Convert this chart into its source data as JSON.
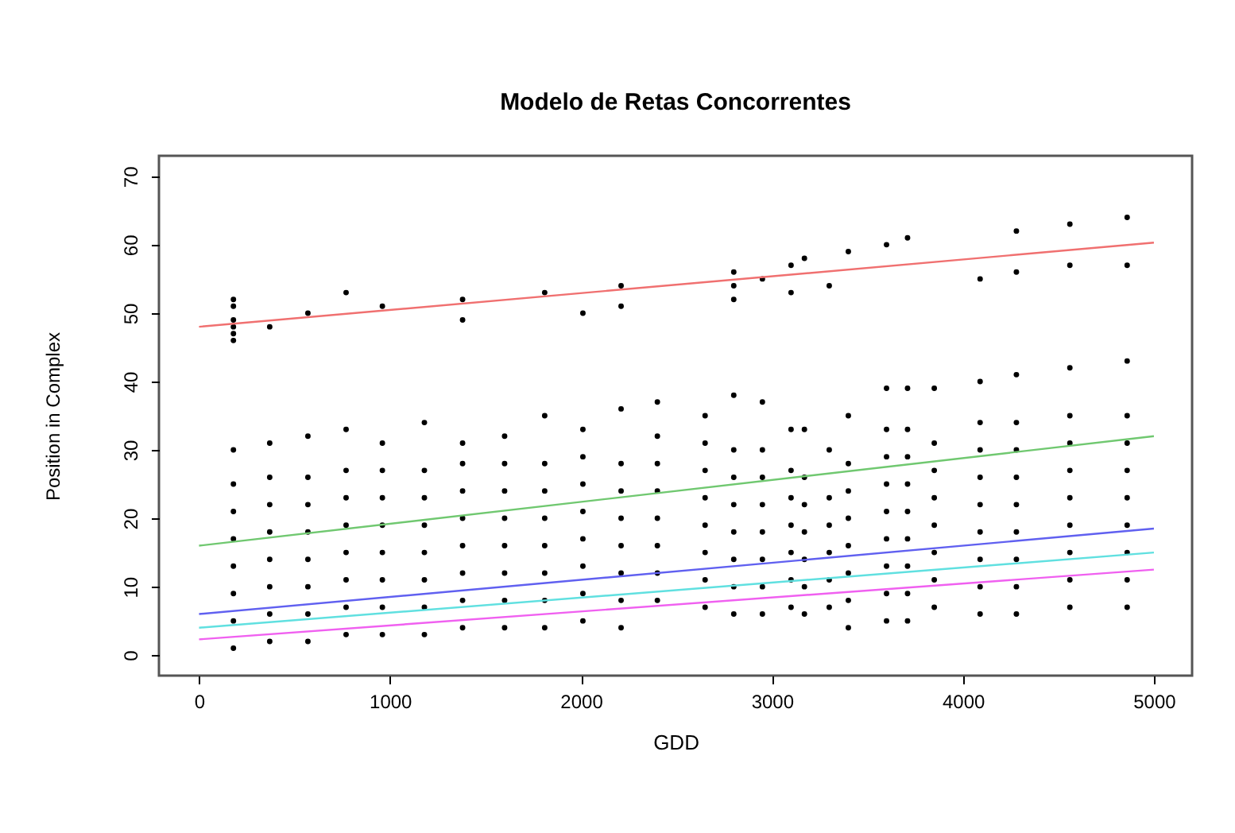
{
  "chart_data": {
    "type": "scatter",
    "title": "Modelo de Retas Concorrentes",
    "xlabel": "GDD",
    "ylabel": "Position in Complex",
    "xlim": [
      -210,
      5200
    ],
    "ylim": [
      -3,
      73
    ],
    "xticks": [
      0,
      1000,
      2000,
      3000,
      4000,
      5000
    ],
    "yticks": [
      0,
      10,
      20,
      30,
      40,
      50,
      60,
      70
    ],
    "grid": false,
    "series": [
      {
        "color": "#000000",
        "marker": "circle",
        "x": [
          180,
          180,
          180,
          180,
          180,
          180,
          180,
          180,
          180,
          180,
          180,
          180,
          180,
          180,
          370,
          370,
          370,
          370,
          370,
          370,
          370,
          370,
          370,
          570,
          570,
          570,
          570,
          570,
          570,
          570,
          570,
          570,
          770,
          770,
          770,
          770,
          770,
          770,
          770,
          770,
          770,
          960,
          960,
          960,
          960,
          960,
          960,
          960,
          960,
          960,
          1180,
          1180,
          1180,
          1180,
          1180,
          1180,
          1180,
          1180,
          1380,
          1380,
          1380,
          1380,
          1380,
          1380,
          1380,
          1380,
          1380,
          1380,
          1600,
          1600,
          1600,
          1600,
          1600,
          1600,
          1600,
          1600,
          1810,
          1810,
          1810,
          1810,
          1810,
          1810,
          1810,
          1810,
          1810,
          2010,
          2010,
          2010,
          2010,
          2010,
          2010,
          2010,
          2010,
          2010,
          2210,
          2210,
          2210,
          2210,
          2210,
          2210,
          2210,
          2210,
          2210,
          2210,
          2400,
          2400,
          2400,
          2400,
          2400,
          2400,
          2400,
          2400,
          2650,
          2650,
          2650,
          2650,
          2650,
          2650,
          2650,
          2650,
          2800,
          2800,
          2800,
          2800,
          2800,
          2800,
          2800,
          2800,
          2800,
          2800,
          2800,
          2950,
          2950,
          2950,
          2950,
          2950,
          2950,
          2950,
          2950,
          2950,
          3100,
          3100,
          3100,
          3100,
          3100,
          3100,
          3100,
          3100,
          3100,
          3170,
          3170,
          3170,
          3170,
          3170,
          3170,
          3170,
          3170,
          3300,
          3300,
          3300,
          3300,
          3300,
          3300,
          3300,
          3400,
          3400,
          3400,
          3400,
          3400,
          3400,
          3400,
          3400,
          3400,
          3600,
          3600,
          3600,
          3600,
          3600,
          3600,
          3600,
          3600,
          3600,
          3600,
          3710,
          3710,
          3710,
          3710,
          3710,
          3710,
          3710,
          3710,
          3710,
          3710,
          3850,
          3850,
          3850,
          3850,
          3850,
          3850,
          3850,
          3850,
          4090,
          4090,
          4090,
          4090,
          4090,
          4090,
          4090,
          4090,
          4090,
          4090,
          4280,
          4280,
          4280,
          4280,
          4280,
          4280,
          4280,
          4280,
          4280,
          4280,
          4280,
          4560,
          4560,
          4560,
          4560,
          4560,
          4560,
          4560,
          4560,
          4560,
          4560,
          4560,
          4860,
          4860,
          4860,
          4860,
          4860,
          4860,
          4860,
          4860,
          4860,
          4860,
          4860
        ],
        "values": [
          1,
          5,
          9,
          13,
          17,
          21,
          25,
          30,
          46,
          47,
          48,
          49,
          51,
          52,
          2,
          6,
          10,
          14,
          18,
          22,
          26,
          31,
          48,
          2,
          6,
          10,
          14,
          18,
          22,
          26,
          32,
          50,
          3,
          7,
          11,
          15,
          19,
          23,
          27,
          33,
          53,
          3,
          7,
          11,
          15,
          19,
          23,
          27,
          31,
          51,
          3,
          7,
          11,
          15,
          19,
          23,
          27,
          34,
          4,
          8,
          12,
          16,
          20,
          24,
          28,
          31,
          49,
          52,
          4,
          8,
          12,
          16,
          20,
          24,
          28,
          32,
          4,
          8,
          12,
          16,
          20,
          24,
          28,
          35,
          53,
          5,
          9,
          13,
          17,
          21,
          25,
          29,
          33,
          50,
          4,
          8,
          12,
          16,
          20,
          24,
          28,
          36,
          51,
          54,
          8,
          12,
          16,
          20,
          24,
          28,
          32,
          37,
          7,
          11,
          15,
          19,
          23,
          27,
          31,
          35,
          6,
          10,
          14,
          18,
          22,
          26,
          30,
          38,
          52,
          54,
          56,
          6,
          10,
          14,
          18,
          22,
          26,
          30,
          37,
          55,
          7,
          11,
          15,
          19,
          23,
          27,
          33,
          53,
          57,
          6,
          10,
          14,
          18,
          22,
          26,
          33,
          58,
          7,
          11,
          15,
          19,
          23,
          30,
          54,
          4,
          8,
          12,
          16,
          20,
          24,
          28,
          35,
          59,
          5,
          9,
          13,
          17,
          21,
          25,
          29,
          33,
          39,
          60,
          5,
          9,
          13,
          17,
          21,
          25,
          29,
          33,
          39,
          61,
          7,
          11,
          15,
          19,
          23,
          27,
          31,
          39,
          6,
          10,
          14,
          18,
          22,
          26,
          30,
          34,
          40,
          55,
          6,
          10,
          14,
          18,
          22,
          26,
          30,
          34,
          41,
          56,
          62,
          7,
          11,
          15,
          19,
          23,
          27,
          31,
          35,
          42,
          57,
          63,
          7,
          11,
          15,
          19,
          23,
          27,
          31,
          35,
          43,
          57,
          64
        ]
      },
      {
        "type": "line",
        "color": "#f07070",
        "x": [
          0,
          5000
        ],
        "values": [
          48,
          60.3
        ]
      },
      {
        "type": "line",
        "color": "#70c870",
        "x": [
          0,
          5000
        ],
        "values": [
          16,
          32
        ]
      },
      {
        "type": "line",
        "color": "#6060f0",
        "x": [
          0,
          5000
        ],
        "values": [
          6,
          18.5
        ]
      },
      {
        "type": "line",
        "color": "#60e0e0",
        "x": [
          0,
          5000
        ],
        "values": [
          4,
          15
        ]
      },
      {
        "type": "line",
        "color": "#f060f0",
        "x": [
          0,
          5000
        ],
        "values": [
          2.3,
          12.5
        ]
      }
    ]
  }
}
